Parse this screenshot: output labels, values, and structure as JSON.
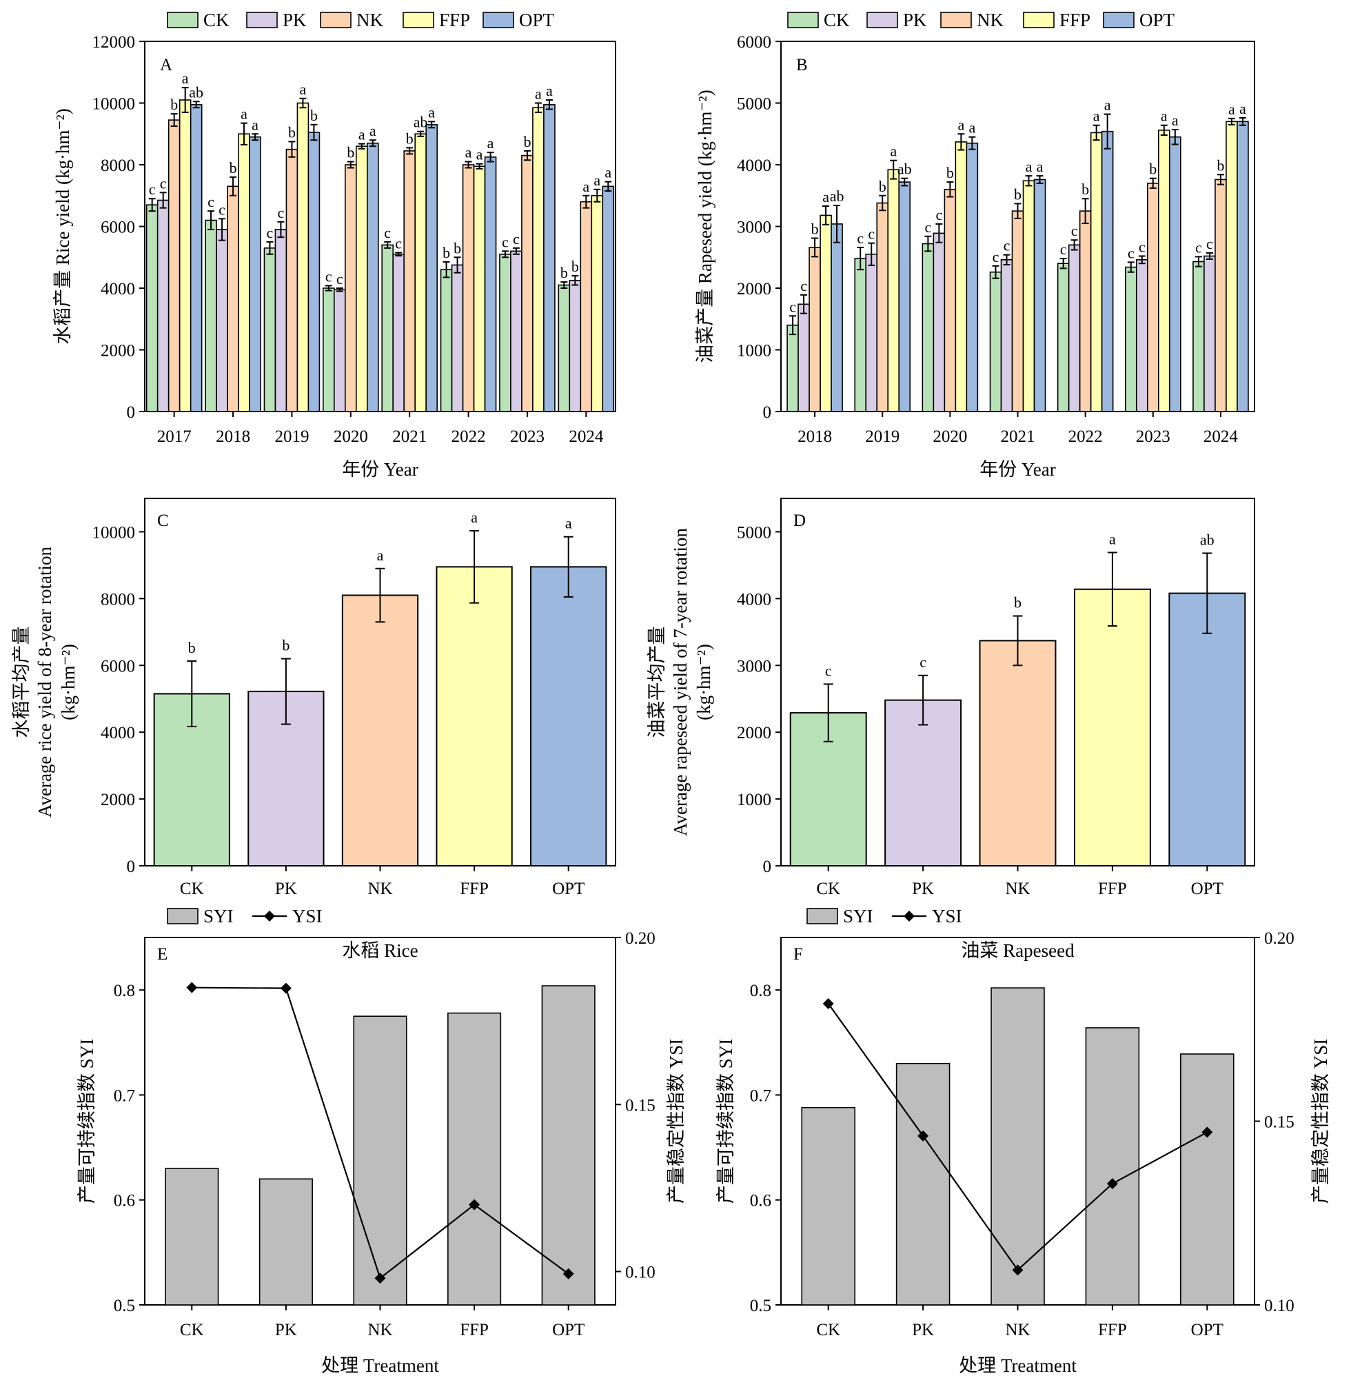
{
  "colors": {
    "CK": "#b9e2b9",
    "PK": "#d8cde6",
    "NK": "#fcd2af",
    "FFP": "#ffffb2",
    "OPT": "#9db8de",
    "bar_gray": "#bdbdbd",
    "line": "#000000"
  },
  "chart_data": [
    {
      "id": "A",
      "type": "bar",
      "panel_label": "A",
      "ylabel": "水稻产量 Rice yield (kg·hm⁻²)",
      "xlabel": "年份 Year",
      "ylim": [
        0,
        12000
      ],
      "yticks": [
        0,
        2000,
        4000,
        6000,
        8000,
        10000,
        12000
      ],
      "categories": [
        "2017",
        "2018",
        "2019",
        "2020",
        "2021",
        "2022",
        "2023",
        "2024"
      ],
      "series": [
        {
          "name": "CK",
          "values": [
            6700,
            6200,
            5300,
            4000,
            5400,
            4600,
            5100,
            4100
          ],
          "err": [
            200,
            300,
            200,
            80,
            100,
            250,
            100,
            100
          ],
          "sig": [
            "c",
            "c",
            "c",
            "c",
            "c",
            "b",
            "c",
            "b"
          ]
        },
        {
          "name": "PK",
          "values": [
            6850,
            5900,
            5900,
            3950,
            5100,
            4750,
            5200,
            4250
          ],
          "err": [
            250,
            350,
            250,
            50,
            50,
            250,
            100,
            150
          ],
          "sig": [
            "c",
            "c",
            "c",
            "c",
            "c",
            "b",
            "c",
            "b"
          ]
        },
        {
          "name": "NK",
          "values": [
            9450,
            7300,
            8500,
            8000,
            8450,
            8000,
            8300,
            6800
          ],
          "err": [
            200,
            300,
            250,
            100,
            100,
            100,
            150,
            200
          ],
          "sig": [
            "b",
            "b",
            "b",
            "b",
            "b",
            "a",
            "b",
            "a"
          ]
        },
        {
          "name": "FFP",
          "values": [
            10100,
            9000,
            10000,
            8600,
            9000,
            7950,
            9850,
            7000
          ],
          "err": [
            400,
            350,
            150,
            80,
            80,
            80,
            150,
            200
          ],
          "sig": [
            "a",
            "a",
            "a",
            "a",
            "ab",
            "a",
            "a",
            "a"
          ]
        },
        {
          "name": "OPT",
          "values": [
            9950,
            8900,
            9050,
            8700,
            9300,
            8250,
            9950,
            7300
          ],
          "err": [
            100,
            100,
            250,
            100,
            100,
            150,
            150,
            150
          ],
          "sig": [
            "ab",
            "a",
            "b",
            "a",
            "a",
            "a",
            "a",
            "a"
          ]
        }
      ]
    },
    {
      "id": "B",
      "type": "bar",
      "panel_label": "B",
      "ylabel": "油菜产量 Rapeseed yield (kg·hm⁻²)",
      "xlabel": "年份 Year",
      "ylim": [
        0,
        6000
      ],
      "yticks": [
        0,
        1000,
        2000,
        3000,
        4000,
        5000,
        6000
      ],
      "categories": [
        "2018",
        "2019",
        "2020",
        "2021",
        "2022",
        "2023",
        "2024"
      ],
      "series": [
        {
          "name": "CK",
          "values": [
            1400,
            2480,
            2720,
            2260,
            2400,
            2340,
            2430
          ],
          "err": [
            150,
            180,
            120,
            100,
            80,
            80,
            80
          ],
          "sig": [
            "c",
            "c",
            "c",
            "c",
            "c",
            "c",
            "c"
          ]
        },
        {
          "name": "PK",
          "values": [
            1740,
            2550,
            2890,
            2460,
            2700,
            2460,
            2520
          ],
          "err": [
            150,
            180,
            150,
            80,
            80,
            60,
            50
          ],
          "sig": [
            "c",
            "c",
            "c",
            "c",
            "c",
            "c",
            "c"
          ]
        },
        {
          "name": "NK",
          "values": [
            2660,
            3380,
            3600,
            3250,
            3250,
            3700,
            3760
          ],
          "err": [
            150,
            120,
            120,
            120,
            200,
            80,
            80
          ],
          "sig": [
            "b",
            "b",
            "b",
            "b",
            "b",
            "b",
            "b"
          ]
        },
        {
          "name": "FFP",
          "values": [
            3180,
            3920,
            4370,
            3740,
            4520,
            4560,
            4700
          ],
          "err": [
            150,
            150,
            130,
            80,
            120,
            80,
            50
          ],
          "sig": [
            "a",
            "a",
            "a",
            "a",
            "a",
            "a",
            "a"
          ]
        },
        {
          "name": "OPT",
          "values": [
            3040,
            3720,
            4350,
            3760,
            4540,
            4450,
            4700
          ],
          "err": [
            300,
            60,
            100,
            60,
            280,
            120,
            60
          ],
          "sig": [
            "ab",
            "ab",
            "a",
            "a",
            "a",
            "a",
            "a"
          ]
        }
      ]
    },
    {
      "id": "C",
      "type": "bar",
      "panel_label": "C",
      "ylabel": [
        "水稻平均产量",
        "Average rice yield of 8-year rotation",
        "(kg·hm⁻²)"
      ],
      "ylim": [
        0,
        11000
      ],
      "yticks": [
        0,
        2000,
        4000,
        6000,
        8000,
        10000
      ],
      "categories": [
        "CK",
        "PK",
        "NK",
        "FFP",
        "OPT"
      ],
      "values": [
        5150,
        5220,
        8100,
        8950,
        8950
      ],
      "err": [
        980,
        980,
        800,
        1080,
        900
      ],
      "sig": [
        "b",
        "b",
        "a",
        "a",
        "a"
      ]
    },
    {
      "id": "D",
      "type": "bar",
      "panel_label": "D",
      "ylabel": [
        "油菜平均产量",
        "Average rapeseed yield of 7-year rotation",
        "(kg·hm⁻²)"
      ],
      "ylim": [
        0,
        5500
      ],
      "yticks": [
        0,
        1000,
        2000,
        3000,
        4000,
        5000
      ],
      "categories": [
        "CK",
        "PK",
        "NK",
        "FFP",
        "OPT"
      ],
      "values": [
        2290,
        2480,
        3370,
        4140,
        4080
      ],
      "err": [
        430,
        370,
        370,
        550,
        600
      ],
      "sig": [
        "c",
        "c",
        "b",
        "a",
        "ab"
      ]
    },
    {
      "id": "E",
      "type": "bar+line",
      "panel_label": "E",
      "subtitle": "水稻 Rice",
      "ylabel": "产量可持续指数 SYI",
      "y2label": "产量稳定性指数 YSI",
      "xlabel": "处理 Treatment",
      "ylim": [
        0.5,
        0.85
      ],
      "yticks": [
        0.5,
        0.6,
        0.7,
        0.8
      ],
      "y2lim": [
        0.09,
        0.2
      ],
      "y2ticks": [
        0.1,
        0.15,
        0.2
      ],
      "categories": [
        "CK",
        "PK",
        "NK",
        "FFP",
        "OPT"
      ],
      "series": [
        {
          "name": "SYI",
          "values": [
            0.63,
            0.62,
            0.775,
            0.778,
            0.804
          ]
        },
        {
          "name": "YSI",
          "values": [
            0.185,
            0.1848,
            0.098,
            0.12,
            0.0993
          ]
        }
      ]
    },
    {
      "id": "F",
      "type": "bar+line",
      "panel_label": "F",
      "subtitle": "油菜 Rapeseed",
      "ylabel": "产量可持续指数 SYI",
      "y2label": "产量稳定性指数 YSI",
      "xlabel": "处理 Treatment",
      "ylim": [
        0.5,
        0.85
      ],
      "yticks": [
        0.5,
        0.6,
        0.7,
        0.8
      ],
      "y2lim": [
        0.1,
        0.2
      ],
      "y2ticks": [
        0.1,
        0.15,
        0.2
      ],
      "categories": [
        "CK",
        "PK",
        "NK",
        "FFP",
        "OPT"
      ],
      "series": [
        {
          "name": "SYI",
          "values": [
            0.688,
            0.73,
            0.802,
            0.764,
            0.739
          ]
        },
        {
          "name": "YSI",
          "values": [
            0.182,
            0.146,
            0.1095,
            0.133,
            0.147
          ]
        }
      ]
    }
  ],
  "legend_treatments": [
    "CK",
    "PK",
    "NK",
    "FFP",
    "OPT"
  ],
  "legend_index": [
    "SYI",
    "YSI"
  ]
}
